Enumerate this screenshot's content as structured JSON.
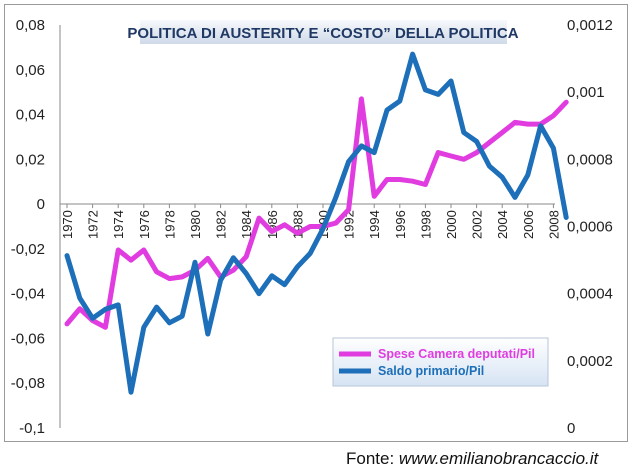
{
  "chart_data": {
    "type": "line",
    "title": "POLITICA DI AUSTERITY E “COSTO” DELLA POLITICA",
    "x": [
      1970,
      1971,
      1972,
      1973,
      1974,
      1975,
      1976,
      1977,
      1978,
      1979,
      1980,
      1981,
      1982,
      1983,
      1984,
      1985,
      1986,
      1987,
      1988,
      1989,
      1990,
      1991,
      1992,
      1993,
      1994,
      1995,
      1996,
      1997,
      1998,
      1999,
      2000,
      2001,
      2002,
      2003,
      2004,
      2005,
      2006,
      2007,
      2008,
      2009
    ],
    "x_ticks": [
      1970,
      1972,
      1974,
      1976,
      1978,
      1980,
      1982,
      1984,
      1986,
      1988,
      1990,
      1992,
      1994,
      1996,
      1998,
      2000,
      2002,
      2004,
      2006,
      2008
    ],
    "y_left": {
      "min": -0.1,
      "max": 0.08,
      "ticks": [
        "0,08",
        "0,06",
        "0,04",
        "0,02",
        "0",
        "-0,02",
        "-0,04",
        "-0,06",
        "-0,08",
        "-0,1"
      ],
      "tick_values": [
        0.08,
        0.06,
        0.04,
        0.02,
        0,
        -0.02,
        -0.04,
        -0.06,
        -0.08,
        -0.1
      ]
    },
    "y_right": {
      "min": 0,
      "max": 0.0012,
      "ticks": [
        "0,0012",
        "0,001",
        "0,0008",
        "0,0006",
        "0,0004",
        "0,0002",
        "0"
      ],
      "tick_values": [
        0.0012,
        0.001,
        0.0008,
        0.0006,
        0.0004,
        0.0002,
        0
      ]
    },
    "grid": false,
    "legend_position": "bottom-right",
    "series": [
      {
        "name": "Spese Camera deputati/Pil",
        "axis": "right",
        "color": "#e03ce0",
        "values": [
          0.00031,
          0.000355,
          0.00032,
          0.0003,
          0.00053,
          0.0005,
          0.00053,
          0.000465,
          0.000445,
          0.00045,
          0.00047,
          0.000505,
          0.00045,
          0.00047,
          0.00051,
          0.000625,
          0.000585,
          0.000605,
          0.00058,
          0.0006,
          0.0006,
          0.00061,
          0.00065,
          0.00098,
          0.00069,
          0.00074,
          0.00074,
          0.000735,
          0.000725,
          0.00082,
          0.00081,
          0.0008,
          0.00082,
          0.00085,
          0.00088,
          0.00091,
          0.000905,
          0.000905,
          0.00093,
          0.00097
        ]
      },
      {
        "name": "Saldo primario/Pil",
        "axis": "left",
        "color": "#1c6fb8",
        "values": [
          -0.023,
          -0.042,
          -0.051,
          -0.047,
          -0.045,
          -0.084,
          -0.055,
          -0.046,
          -0.053,
          -0.05,
          -0.026,
          -0.058,
          -0.034,
          -0.024,
          -0.031,
          -0.04,
          -0.032,
          -0.036,
          -0.028,
          -0.022,
          -0.011,
          0.003,
          0.019,
          0.026,
          0.023,
          0.042,
          0.046,
          0.067,
          0.051,
          0.049,
          0.055,
          0.032,
          0.028,
          0.017,
          0.012,
          0.003,
          0.013,
          0.035,
          0.025,
          -0.006
        ]
      }
    ]
  },
  "source": {
    "label": "Fonte: ",
    "site": "www.emilianobrancaccio.it"
  }
}
